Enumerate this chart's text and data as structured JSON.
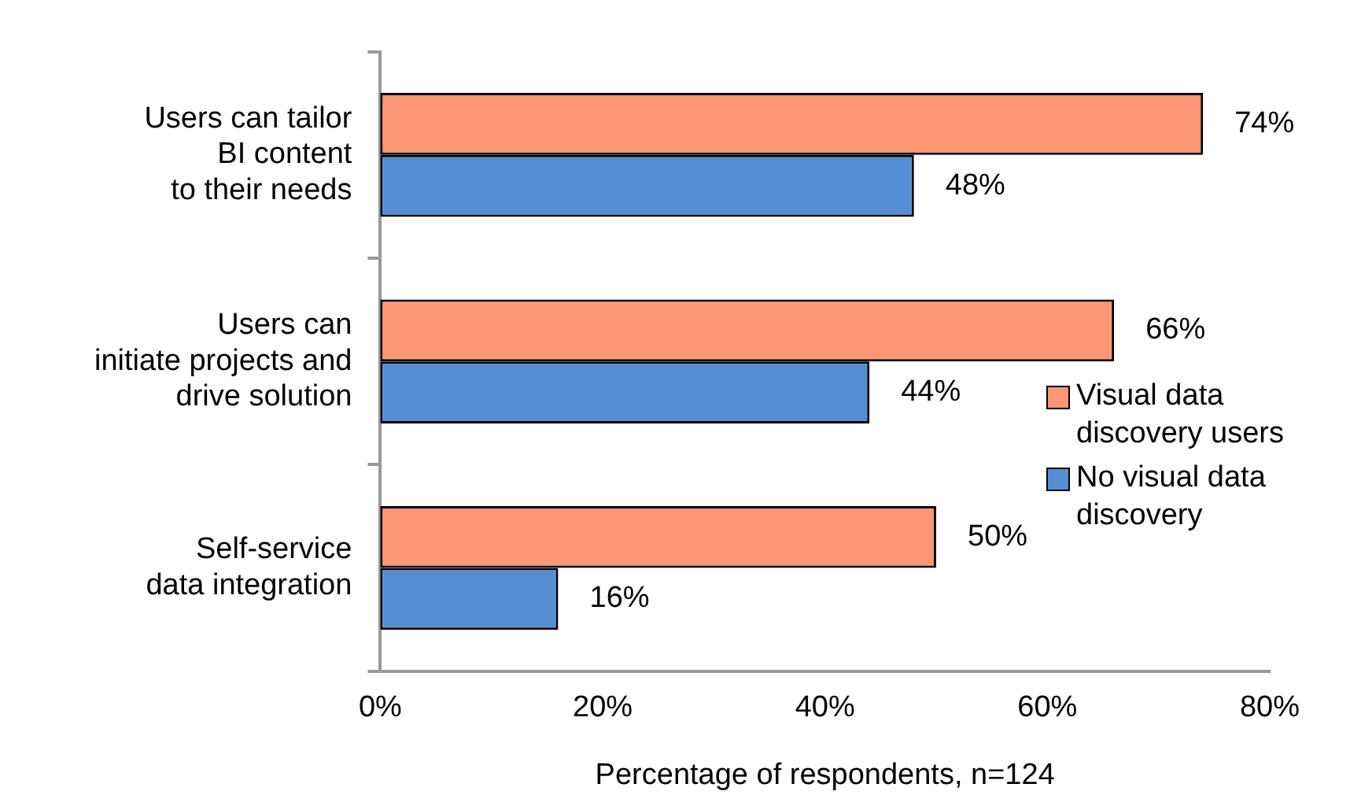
{
  "chart_data": {
    "type": "bar",
    "orientation": "horizontal",
    "xlabel": "Percentage of respondents, n=124",
    "categories": [
      "Users can tailor\nBI content\nto their needs",
      "Users can\ninitiate projects and\ndrive solution",
      "Self-service\ndata integration"
    ],
    "series": [
      {
        "name": "Visual data\ndiscovery users",
        "color": "#fa9673",
        "values": [
          74,
          66,
          50
        ],
        "value_labels": [
          "74%",
          "66%",
          "50%"
        ]
      },
      {
        "name": "No visual data\ndiscovery",
        "color": "#558ed5",
        "values": [
          48,
          44,
          16
        ],
        "value_labels": [
          "48%",
          "44%",
          "16%"
        ]
      }
    ],
    "xlim": [
      0,
      80
    ],
    "xticks": [
      {
        "value": 0,
        "label": "0%"
      },
      {
        "value": 20,
        "label": "20%"
      },
      {
        "value": 40,
        "label": "40%"
      },
      {
        "value": 60,
        "label": "60%"
      },
      {
        "value": 80,
        "label": "80%"
      }
    ],
    "grid": false,
    "legend": "right"
  }
}
